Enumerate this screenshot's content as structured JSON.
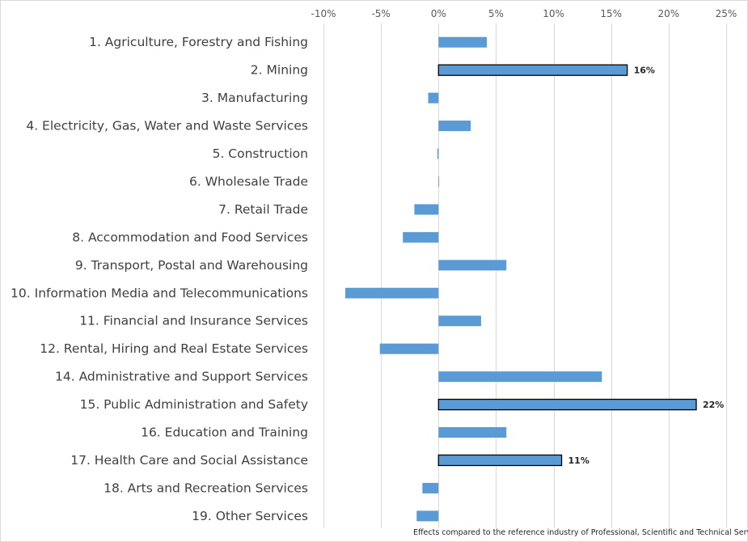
{
  "chart_data": {
    "type": "bar",
    "orientation": "horizontal",
    "categories": [
      "1. Agriculture, Forestry and Fishing",
      "2. Mining",
      "3. Manufacturing",
      "4. Electricity, Gas, Water and Waste Services",
      "5. Construction",
      "6. Wholesale Trade",
      "7. Retail Trade",
      "8. Accommodation and Food Services",
      "9. Transport, Postal and Warehousing",
      "10. Information Media and Telecommunications",
      "11. Financial and Insurance Services",
      "12. Rental, Hiring and Real Estate Services",
      "14. Administrative and Support Services",
      "15. Public Administration and Safety",
      "16. Education and Training",
      "17. Health Care and Social Assistance",
      "18. Arts and Recreation Services",
      "19. Other Services"
    ],
    "values": [
      4.2,
      16.4,
      -0.9,
      2.8,
      -0.1,
      0.0,
      -2.1,
      -3.1,
      5.9,
      -8.1,
      3.7,
      -5.1,
      14.2,
      22.4,
      5.9,
      10.7,
      -1.4,
      -1.9
    ],
    "highlighted": [
      false,
      true,
      false,
      false,
      false,
      false,
      false,
      false,
      false,
      false,
      false,
      false,
      false,
      true,
      false,
      true,
      false,
      false
    ],
    "data_labels": [
      "",
      "16%",
      "",
      "",
      "",
      "",
      "",
      "",
      "",
      "",
      "",
      "",
      "",
      "22%",
      "",
      "11%",
      "",
      ""
    ],
    "xlim": [
      -10,
      25
    ],
    "x_ticks": [
      -10,
      -5,
      0,
      5,
      10,
      15,
      20,
      25
    ],
    "x_tick_labels": [
      "-10%",
      "-5%",
      "0%",
      "5%",
      "10%",
      "15%",
      "20%",
      "25%"
    ],
    "x_axis_position": "top",
    "grid": "vertical",
    "bar_color": "#5b9bd5",
    "highlight_outline_color": "#000000",
    "grid_color": "#d9d9d9",
    "title": "",
    "xlabel": "",
    "ylabel": "",
    "footnote": "Effects compared to the reference industry of Professional, Scientific and Technical Services"
  }
}
